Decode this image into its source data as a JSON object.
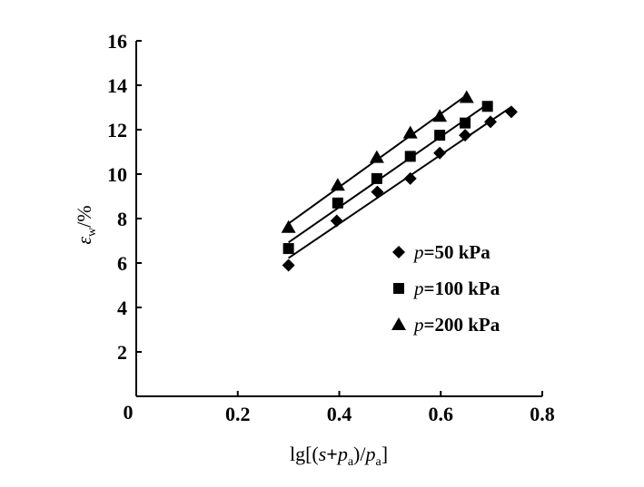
{
  "chart_data": {
    "type": "scatter",
    "title": "",
    "xlabel": "lg[(s+pa)/pa]",
    "xlabel_parts": {
      "lg": "lg[(",
      "s": "s",
      "plus": "+",
      "p1": "p",
      "sub1": "a",
      "mid": ")/",
      "p2": "p",
      "sub2": "a",
      "end": "]"
    },
    "ylabel": "εw/%",
    "ylabel_parts": {
      "eps": "ε",
      "sub": "w",
      "unit": "/%"
    },
    "xlim": [
      0,
      0.8
    ],
    "ylim": [
      0,
      16
    ],
    "xticks": [
      "0.2",
      "0.4",
      "0.6",
      "0.8"
    ],
    "yticks": [
      "2",
      "4",
      "6",
      "8",
      "10",
      "12",
      "14",
      "16"
    ],
    "origin_label": "0",
    "grid": false,
    "legend_position": "right-middle",
    "series": [
      {
        "name": "p=50 kPa",
        "p": "p",
        "rest": "=50 kPa",
        "marker": "diamond",
        "x": [
          0.3,
          0.395,
          0.475,
          0.54,
          0.598,
          0.648,
          0.698,
          0.739
        ],
        "y": [
          5.9,
          7.9,
          9.2,
          9.8,
          10.95,
          11.75,
          12.35,
          12.8
        ]
      },
      {
        "name": "p=100 kPa",
        "p": "p",
        "rest": "=100 kPa",
        "marker": "square",
        "x": [
          0.3,
          0.397,
          0.474,
          0.54,
          0.598,
          0.648,
          0.692
        ],
        "y": [
          6.65,
          8.7,
          9.8,
          10.8,
          11.75,
          12.3,
          13.05
        ]
      },
      {
        "name": "p=200 kPa",
        "p": "p",
        "rest": "=200 kPa",
        "marker": "triangle",
        "x": [
          0.3,
          0.397,
          0.474,
          0.54,
          0.598,
          0.651
        ],
        "y": [
          7.6,
          9.5,
          10.75,
          11.85,
          12.6,
          13.45
        ]
      }
    ]
  }
}
